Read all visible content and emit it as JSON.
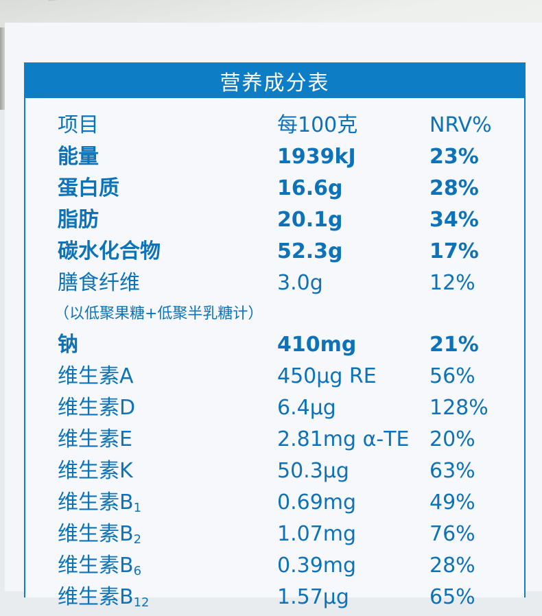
{
  "table": {
    "title": "营养成分表",
    "header": {
      "item": "项目",
      "per100": "每100克",
      "nrv": "NRV%"
    },
    "rows": [
      {
        "item": "能量",
        "per100": "1939kJ",
        "nrv": "23%",
        "bold": true
      },
      {
        "item": "蛋白质",
        "per100": "16.6g",
        "nrv": "28%",
        "bold": true
      },
      {
        "item": "脂肪",
        "per100": "20.1g",
        "nrv": "34%",
        "bold": true
      },
      {
        "item": "碳水化合物",
        "per100": "52.3g",
        "nrv": "17%",
        "bold": true
      },
      {
        "item": "膳食纤维",
        "per100": "3.0g",
        "nrv": "12%",
        "bold": false
      },
      {
        "note": "（以低聚果糖+低聚半乳糖计）"
      },
      {
        "item": "钠",
        "per100": "410mg",
        "nrv": "21%",
        "bold": true
      },
      {
        "item": "维生素A",
        "per100": "450μg RE",
        "nrv": "56%",
        "bold": false
      },
      {
        "item": "维生素D",
        "per100": "6.4μg",
        "nrv": "128%",
        "bold": false
      },
      {
        "item": "维生素E",
        "per100": "2.81mg α-TE",
        "nrv": "20%",
        "bold": false
      },
      {
        "item": "维生素K",
        "per100": "50.3μg",
        "nrv": "63%",
        "bold": false
      },
      {
        "item": "维生素B",
        "sub": "1",
        "per100": "0.69mg",
        "nrv": "49%",
        "bold": false
      },
      {
        "item": "维生素B",
        "sub": "2",
        "per100": "1.07mg",
        "nrv": "76%",
        "bold": false
      },
      {
        "item": "维生素B",
        "sub": "6",
        "per100": "0.39mg",
        "nrv": "28%",
        "bold": false
      },
      {
        "item": "维生素B",
        "sub": "12",
        "per100": "1.57μg",
        "nrv": "65%",
        "bold": false
      }
    ]
  },
  "colors": {
    "accent": "#0d7dc6",
    "text": "#0d72b8"
  }
}
